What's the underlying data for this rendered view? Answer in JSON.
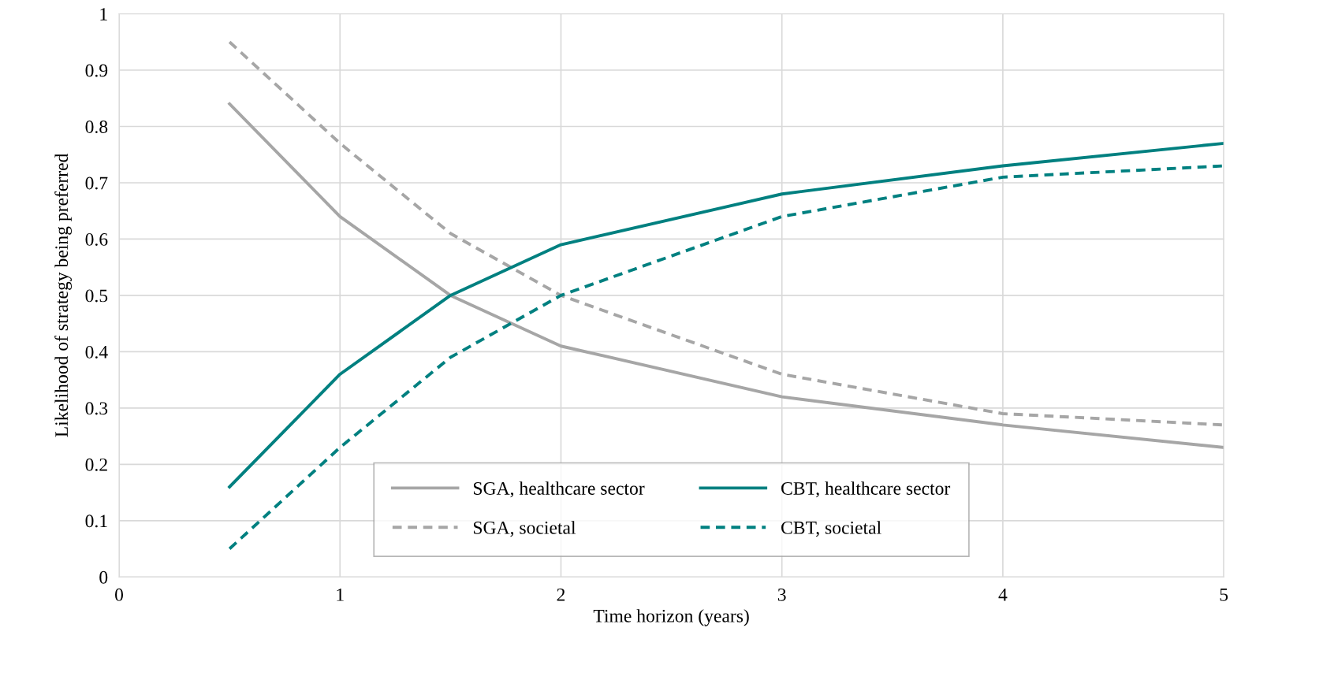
{
  "chart_data": {
    "type": "line",
    "xlabel": "Time horizon (years)",
    "ylabel": "Likelihood of strategy being preferred",
    "x": [
      0.5,
      1,
      1.5,
      2,
      3,
      4,
      5
    ],
    "series": [
      {
        "name": "SGA, healthcare sector",
        "color": "#a6a6a6",
        "line_style": "solid",
        "values": [
          0.84,
          0.64,
          0.5,
          0.41,
          0.32,
          0.27,
          0.23
        ]
      },
      {
        "name": "SGA, societal",
        "color": "#a6a6a6",
        "line_style": "dashed",
        "values": [
          0.95,
          0.77,
          0.61,
          0.5,
          0.36,
          0.29,
          0.27
        ]
      },
      {
        "name": "CBT, healthcare sector",
        "color": "#008080",
        "line_style": "solid",
        "values": [
          0.16,
          0.36,
          0.5,
          0.59,
          0.68,
          0.73,
          0.77
        ]
      },
      {
        "name": "CBT, societal",
        "color": "#008080",
        "line_style": "dashed",
        "values": [
          0.05,
          0.23,
          0.39,
          0.5,
          0.64,
          0.71,
          0.73
        ]
      }
    ],
    "xlim": [
      0,
      5
    ],
    "xticks": [
      0,
      1,
      2,
      3,
      4,
      5
    ],
    "ylim": [
      0,
      1
    ],
    "yticks": [
      0,
      0.1,
      0.2,
      0.3,
      0.4,
      0.5,
      0.6,
      0.7,
      0.8,
      0.9,
      1
    ],
    "grid": true,
    "legend": "bottom",
    "marker": "none"
  }
}
